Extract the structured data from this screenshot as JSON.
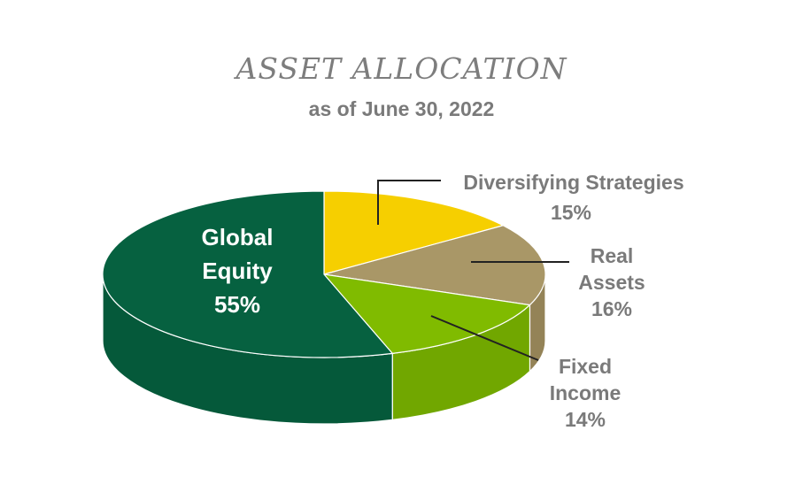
{
  "title": "ASSET ALLOCATION",
  "subtitle": "as of June 30, 2022",
  "chart_data": {
    "type": "pie",
    "title": "ASSET ALLOCATION",
    "subtitle": "as of June 30, 2022",
    "slices": [
      {
        "label_lines": [
          "Global",
          "Equity"
        ],
        "value": 55,
        "value_label": "55%",
        "color": "#066140",
        "side_color": "#05593a"
      },
      {
        "label_lines": [
          "Diversifying Strategies"
        ],
        "value": 15,
        "value_label": "15%",
        "color": "#f6cf00",
        "side_color": "#d9b600"
      },
      {
        "label_lines": [
          "Real",
          "Assets"
        ],
        "value": 16,
        "value_label": "16%",
        "color": "#a99767",
        "side_color": "#948357"
      },
      {
        "label_lines": [
          "Fixed",
          "Income"
        ],
        "value": 14,
        "value_label": "14%",
        "color": "#80bb00",
        "side_color": "#71a700"
      }
    ]
  }
}
